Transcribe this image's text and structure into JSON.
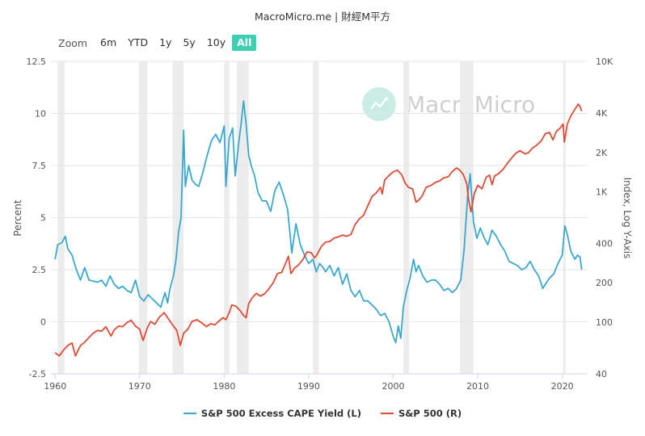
{
  "source_title": "MacroMicro.me | 財經M平方",
  "zoom": {
    "label": "Zoom",
    "options": [
      "6m",
      "YTD",
      "1y",
      "5y",
      "10y",
      "All"
    ],
    "active": "All"
  },
  "watermark": "MacroMicro",
  "colors": {
    "cape": "#3aa8cc",
    "sp500": "#dd4b35",
    "recession": "#ececec",
    "accent": "#3ecfb2"
  },
  "chart_data": {
    "type": "line",
    "title": "",
    "xlabel": "",
    "ylabel_left": "Percent",
    "ylabel_right": "Index, Log Y-Axis",
    "xlim": [
      1959.5,
      2023
    ],
    "x_ticks": [
      "1960",
      "1970",
      "1980",
      "1990",
      "2000",
      "2010",
      "2020"
    ],
    "y_left": {
      "min": -2.5,
      "max": 12.5,
      "ticks": [
        "-2.5",
        "0",
        "2.5",
        "5",
        "7.5",
        "10",
        "12.5"
      ]
    },
    "y_right": {
      "scale": "log",
      "min": 40,
      "max": 10000,
      "ticks": [
        "40",
        "100",
        "200",
        "400",
        "1K",
        "2K",
        "4K",
        "10K"
      ]
    },
    "recessions": [
      [
        1960.3,
        1961.1
      ],
      [
        1969.9,
        1970.9
      ],
      [
        1973.9,
        1975.2
      ],
      [
        1980.0,
        1980.6
      ],
      [
        1981.5,
        1982.9
      ],
      [
        1990.5,
        1991.2
      ],
      [
        2001.2,
        2001.9
      ],
      [
        2007.9,
        2009.5
      ],
      [
        2020.1,
        2020.4
      ]
    ],
    "series": [
      {
        "name": "S&P 500 Excess CAPE Yield (L)",
        "axis": "left",
        "points": [
          [
            1960.0,
            3.0
          ],
          [
            1960.3,
            3.7
          ],
          [
            1960.8,
            3.8
          ],
          [
            1961.2,
            4.1
          ],
          [
            1961.5,
            3.5
          ],
          [
            1962.0,
            3.2
          ],
          [
            1962.5,
            2.5
          ],
          [
            1963.0,
            2.0
          ],
          [
            1963.5,
            2.6
          ],
          [
            1964.0,
            2.0
          ],
          [
            1965.0,
            1.9
          ],
          [
            1965.5,
            2.0
          ],
          [
            1966.0,
            1.7
          ],
          [
            1966.5,
            2.2
          ],
          [
            1967.0,
            1.8
          ],
          [
            1967.5,
            1.6
          ],
          [
            1968.0,
            1.7
          ],
          [
            1968.5,
            1.5
          ],
          [
            1969.0,
            1.4
          ],
          [
            1969.5,
            2.0
          ],
          [
            1970.0,
            1.2
          ],
          [
            1970.5,
            1.0
          ],
          [
            1971.0,
            1.3
          ],
          [
            1971.5,
            1.1
          ],
          [
            1972.0,
            0.9
          ],
          [
            1972.5,
            0.7
          ],
          [
            1973.0,
            1.4
          ],
          [
            1973.3,
            0.9
          ],
          [
            1973.6,
            1.6
          ],
          [
            1974.0,
            2.2
          ],
          [
            1974.3,
            3.0
          ],
          [
            1974.6,
            4.3
          ],
          [
            1974.9,
            5.0
          ],
          [
            1975.2,
            9.2
          ],
          [
            1975.4,
            6.5
          ],
          [
            1975.8,
            7.5
          ],
          [
            1976.2,
            6.8
          ],
          [
            1976.6,
            6.6
          ],
          [
            1977.0,
            6.5
          ],
          [
            1977.5,
            7.2
          ],
          [
            1978.0,
            8.0
          ],
          [
            1978.5,
            8.7
          ],
          [
            1979.0,
            9.0
          ],
          [
            1979.5,
            8.6
          ],
          [
            1980.0,
            9.4
          ],
          [
            1980.2,
            6.5
          ],
          [
            1980.6,
            8.8
          ],
          [
            1981.0,
            9.3
          ],
          [
            1981.3,
            7.0
          ],
          [
            1981.7,
            8.5
          ],
          [
            1982.0,
            9.5
          ],
          [
            1982.3,
            10.6
          ],
          [
            1982.6,
            9.5
          ],
          [
            1982.9,
            8.0
          ],
          [
            1983.2,
            7.5
          ],
          [
            1983.6,
            7.0
          ],
          [
            1984.0,
            6.2
          ],
          [
            1984.5,
            5.8
          ],
          [
            1985.0,
            5.8
          ],
          [
            1985.5,
            5.3
          ],
          [
            1986.0,
            6.3
          ],
          [
            1986.5,
            6.7
          ],
          [
            1987.0,
            6.1
          ],
          [
            1987.5,
            5.4
          ],
          [
            1987.8,
            4.2
          ],
          [
            1988.0,
            3.3
          ],
          [
            1988.5,
            4.7
          ],
          [
            1989.0,
            3.7
          ],
          [
            1989.5,
            3.2
          ],
          [
            1990.0,
            2.8
          ],
          [
            1990.5,
            3.0
          ],
          [
            1990.9,
            2.4
          ],
          [
            1991.3,
            2.8
          ],
          [
            1991.7,
            2.6
          ],
          [
            1992.0,
            2.4
          ],
          [
            1992.5,
            2.7
          ],
          [
            1993.0,
            2.2
          ],
          [
            1993.5,
            2.6
          ],
          [
            1994.0,
            1.8
          ],
          [
            1994.5,
            2.3
          ],
          [
            1995.0,
            1.5
          ],
          [
            1995.5,
            1.2
          ],
          [
            1996.0,
            1.5
          ],
          [
            1996.5,
            1.0
          ],
          [
            1997.0,
            1.0
          ],
          [
            1997.5,
            0.8
          ],
          [
            1998.0,
            0.6
          ],
          [
            1998.5,
            0.3
          ],
          [
            1999.0,
            0.4
          ],
          [
            1999.5,
            0.0
          ],
          [
            2000.0,
            -0.7
          ],
          [
            2000.3,
            -1.0
          ],
          [
            2000.6,
            -0.2
          ],
          [
            2000.9,
            -0.8
          ],
          [
            2001.2,
            0.7
          ],
          [
            2001.6,
            1.5
          ],
          [
            2002.0,
            2.1
          ],
          [
            2002.4,
            3.0
          ],
          [
            2002.7,
            2.4
          ],
          [
            2003.0,
            2.7
          ],
          [
            2003.5,
            2.2
          ],
          [
            2004.0,
            1.9
          ],
          [
            2004.5,
            2.0
          ],
          [
            2005.0,
            2.0
          ],
          [
            2005.5,
            1.8
          ],
          [
            2006.0,
            1.5
          ],
          [
            2006.5,
            1.6
          ],
          [
            2007.0,
            1.4
          ],
          [
            2007.5,
            1.6
          ],
          [
            2008.0,
            2.0
          ],
          [
            2008.4,
            3.5
          ],
          [
            2008.8,
            6.0
          ],
          [
            2009.1,
            7.1
          ],
          [
            2009.5,
            4.8
          ],
          [
            2009.9,
            4.0
          ],
          [
            2010.3,
            4.5
          ],
          [
            2010.8,
            4.0
          ],
          [
            2011.2,
            3.7
          ],
          [
            2011.7,
            4.4
          ],
          [
            2012.2,
            4.1
          ],
          [
            2012.7,
            3.7
          ],
          [
            2013.2,
            3.4
          ],
          [
            2013.7,
            2.9
          ],
          [
            2014.2,
            2.8
          ],
          [
            2014.7,
            2.7
          ],
          [
            2015.2,
            2.5
          ],
          [
            2015.7,
            2.6
          ],
          [
            2016.2,
            2.9
          ],
          [
            2016.7,
            2.5
          ],
          [
            2017.2,
            2.2
          ],
          [
            2017.7,
            1.6
          ],
          [
            2018.0,
            1.8
          ],
          [
            2018.5,
            2.1
          ],
          [
            2019.0,
            2.3
          ],
          [
            2019.5,
            2.8
          ],
          [
            2020.0,
            3.2
          ],
          [
            2020.3,
            4.6
          ],
          [
            2020.6,
            4.2
          ],
          [
            2021.0,
            3.4
          ],
          [
            2021.5,
            3.0
          ],
          [
            2021.8,
            3.2
          ],
          [
            2022.1,
            3.1
          ],
          [
            2022.3,
            2.5
          ]
        ]
      },
      {
        "name": "S&P 500 (R)",
        "axis": "right",
        "points": [
          [
            1960.0,
            58
          ],
          [
            1960.5,
            55
          ],
          [
            1961.0,
            61
          ],
          [
            1961.5,
            66
          ],
          [
            1962.0,
            69
          ],
          [
            1962.4,
            55
          ],
          [
            1963.0,
            66
          ],
          [
            1963.5,
            70
          ],
          [
            1964.0,
            76
          ],
          [
            1964.5,
            82
          ],
          [
            1965.0,
            86
          ],
          [
            1965.5,
            85
          ],
          [
            1966.0,
            92
          ],
          [
            1966.6,
            78
          ],
          [
            1967.0,
            87
          ],
          [
            1967.5,
            93
          ],
          [
            1968.0,
            92
          ],
          [
            1968.5,
            99
          ],
          [
            1969.0,
            103
          ],
          [
            1969.5,
            93
          ],
          [
            1970.0,
            88
          ],
          [
            1970.4,
            72
          ],
          [
            1970.9,
            90
          ],
          [
            1971.3,
            101
          ],
          [
            1971.8,
            96
          ],
          [
            1972.3,
            108
          ],
          [
            1972.9,
            118
          ],
          [
            1973.3,
            108
          ],
          [
            1973.9,
            95
          ],
          [
            1974.4,
            86
          ],
          [
            1974.8,
            66
          ],
          [
            1975.2,
            82
          ],
          [
            1975.7,
            88
          ],
          [
            1976.2,
            101
          ],
          [
            1976.8,
            104
          ],
          [
            1977.3,
            99
          ],
          [
            1977.9,
            92
          ],
          [
            1978.4,
            97
          ],
          [
            1978.9,
            95
          ],
          [
            1979.4,
            102
          ],
          [
            1979.9,
            108
          ],
          [
            1980.2,
            104
          ],
          [
            1980.6,
            118
          ],
          [
            1980.9,
            135
          ],
          [
            1981.4,
            132
          ],
          [
            1981.9,
            122
          ],
          [
            1982.3,
            112
          ],
          [
            1982.6,
            108
          ],
          [
            1982.9,
            138
          ],
          [
            1983.3,
            153
          ],
          [
            1983.8,
            166
          ],
          [
            1984.3,
            158
          ],
          [
            1984.8,
            165
          ],
          [
            1985.3,
            180
          ],
          [
            1985.8,
            200
          ],
          [
            1986.3,
            235
          ],
          [
            1986.8,
            240
          ],
          [
            1987.3,
            285
          ],
          [
            1987.6,
            320
          ],
          [
            1987.9,
            235
          ],
          [
            1988.3,
            258
          ],
          [
            1988.8,
            275
          ],
          [
            1989.3,
            300
          ],
          [
            1989.8,
            345
          ],
          [
            1990.3,
            340
          ],
          [
            1990.7,
            310
          ],
          [
            1991.0,
            330
          ],
          [
            1991.5,
            380
          ],
          [
            1992.0,
            410
          ],
          [
            1992.5,
            415
          ],
          [
            1993.0,
            440
          ],
          [
            1993.5,
            450
          ],
          [
            1994.0,
            465
          ],
          [
            1994.5,
            455
          ],
          [
            1995.0,
            470
          ],
          [
            1995.5,
            560
          ],
          [
            1996.0,
            620
          ],
          [
            1996.5,
            660
          ],
          [
            1997.0,
            780
          ],
          [
            1997.5,
            920
          ],
          [
            1998.0,
            980
          ],
          [
            1998.5,
            1080
          ],
          [
            1998.7,
            960
          ],
          [
            1999.0,
            1230
          ],
          [
            1999.5,
            1330
          ],
          [
            2000.0,
            1420
          ],
          [
            2000.5,
            1460
          ],
          [
            2001.0,
            1350
          ],
          [
            2001.4,
            1170
          ],
          [
            2001.8,
            1080
          ],
          [
            2002.3,
            1050
          ],
          [
            2002.7,
            830
          ],
          [
            2003.0,
            860
          ],
          [
            2003.4,
            920
          ],
          [
            2003.9,
            1080
          ],
          [
            2004.5,
            1120
          ],
          [
            2005.0,
            1180
          ],
          [
            2005.5,
            1210
          ],
          [
            2006.0,
            1280
          ],
          [
            2006.5,
            1300
          ],
          [
            2007.0,
            1430
          ],
          [
            2007.5,
            1520
          ],
          [
            2007.9,
            1460
          ],
          [
            2008.3,
            1350
          ],
          [
            2008.7,
            1150
          ],
          [
            2008.9,
            880
          ],
          [
            2009.2,
            700
          ],
          [
            2009.6,
            970
          ],
          [
            2010.0,
            1120
          ],
          [
            2010.5,
            1050
          ],
          [
            2011.0,
            1290
          ],
          [
            2011.4,
            1340
          ],
          [
            2011.7,
            1130
          ],
          [
            2012.0,
            1320
          ],
          [
            2012.5,
            1380
          ],
          [
            2013.0,
            1480
          ],
          [
            2013.5,
            1650
          ],
          [
            2014.0,
            1810
          ],
          [
            2014.5,
            1970
          ],
          [
            2015.0,
            2060
          ],
          [
            2015.6,
            1950
          ],
          [
            2016.0,
            1990
          ],
          [
            2016.5,
            2170
          ],
          [
            2017.0,
            2280
          ],
          [
            2017.5,
            2450
          ],
          [
            2018.0,
            2790
          ],
          [
            2018.5,
            2850
          ],
          [
            2018.9,
            2500
          ],
          [
            2019.3,
            2900
          ],
          [
            2019.8,
            3100
          ],
          [
            2020.1,
            3300
          ],
          [
            2020.25,
            2400
          ],
          [
            2020.6,
            3300
          ],
          [
            2021.0,
            3800
          ],
          [
            2021.5,
            4300
          ],
          [
            2021.9,
            4700
          ],
          [
            2022.1,
            4500
          ],
          [
            2022.3,
            4150
          ]
        ]
      }
    ]
  }
}
